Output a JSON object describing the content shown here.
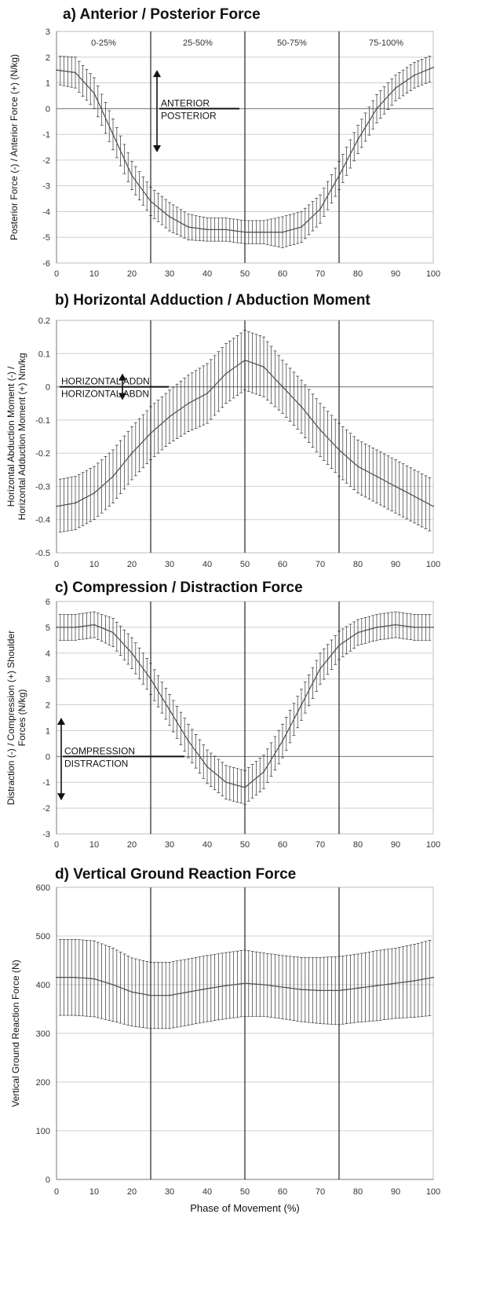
{
  "colors": {
    "mean_line": "#555555",
    "error_bar": "#333333",
    "grid": "#cfcfcf",
    "phase_divider": "#333333",
    "annotation": "#111111"
  },
  "chart_data": [
    {
      "type": "line",
      "title": "a) Anterior / Posterior Force",
      "ylabel": "Posterior Force (-) / Anterior Force (+) (N/kg)",
      "xlabel": "",
      "xlim": [
        0,
        100
      ],
      "ylim": [
        -6,
        3
      ],
      "xticks": [
        0,
        10,
        20,
        30,
        40,
        50,
        60,
        70,
        80,
        90,
        100
      ],
      "yticks": [
        3,
        2,
        1,
        0,
        -1,
        -2,
        -3,
        -4,
        -5,
        -6
      ],
      "grid": true,
      "phase_dividers": [
        25,
        50,
        75
      ],
      "phase_labels": [
        "0-25%",
        "25-50%",
        "50-75%",
        "75-100%"
      ],
      "annotation": {
        "x": 27,
        "y_top": 1.5,
        "y_bottom": -1.7,
        "labels": [
          "ANTERIOR",
          "POSTERIOR"
        ]
      },
      "series": [
        {
          "x": [
            0,
            5,
            10,
            15,
            20,
            25,
            30,
            35,
            40,
            45,
            50,
            55,
            60,
            65,
            70,
            75,
            80,
            85,
            90,
            95,
            100
          ],
          "mean": [
            1.5,
            1.4,
            0.6,
            -1.0,
            -2.6,
            -3.6,
            -4.2,
            -4.6,
            -4.7,
            -4.7,
            -4.8,
            -4.8,
            -4.8,
            -4.6,
            -3.9,
            -2.6,
            -1.2,
            0.0,
            0.8,
            1.3,
            1.6
          ],
          "error": [
            0.55,
            0.6,
            0.6,
            0.6,
            0.55,
            0.55,
            0.55,
            0.5,
            0.45,
            0.45,
            0.45,
            0.45,
            0.6,
            0.6,
            0.55,
            0.55,
            0.55,
            0.55,
            0.5,
            0.5,
            0.5
          ]
        }
      ]
    },
    {
      "type": "line",
      "title": "b) Horizontal Adduction / Abduction Moment",
      "ylabel": "Horizontal Abduction Moment (-) / Horizontal Adduction Moment (+) Nm/kg",
      "xlabel": "",
      "xlim": [
        0,
        100
      ],
      "ylim": [
        -0.5,
        0.2
      ],
      "xticks": [
        0,
        10,
        20,
        30,
        40,
        50,
        60,
        70,
        80,
        90,
        100
      ],
      "yticks": [
        0.2,
        0.1,
        0,
        -0.1,
        -0.2,
        -0.3,
        -0.4,
        -0.5
      ],
      "grid": true,
      "phase_dividers": [
        25,
        50,
        75
      ],
      "annotation": {
        "x": 16,
        "y_top": 0.04,
        "y_bottom": -0.04,
        "labels": [
          "HORIZONTAL  ADDN",
          "HORIZONTAL  ABDN"
        ]
      },
      "series": [
        {
          "x": [
            0,
            5,
            10,
            15,
            20,
            25,
            30,
            35,
            40,
            45,
            50,
            55,
            60,
            65,
            70,
            75,
            80,
            85,
            90,
            95,
            100
          ],
          "mean": [
            -0.36,
            -0.35,
            -0.32,
            -0.27,
            -0.2,
            -0.14,
            -0.09,
            -0.05,
            -0.02,
            0.04,
            0.08,
            0.06,
            0.0,
            -0.06,
            -0.13,
            -0.19,
            -0.24,
            -0.27,
            -0.3,
            -0.33,
            -0.36
          ],
          "error": [
            0.08,
            0.08,
            0.08,
            0.08,
            0.08,
            0.08,
            0.08,
            0.085,
            0.09,
            0.09,
            0.09,
            0.09,
            0.08,
            0.08,
            0.08,
            0.08,
            0.08,
            0.08,
            0.08,
            0.08,
            0.08
          ]
        }
      ]
    },
    {
      "type": "line",
      "title": "c) Compression / Distraction Force",
      "ylabel": "Distraction (-) / Compression (+) Shoulder Forces (N/kg)",
      "xlabel": "",
      "xlim": [
        0,
        100
      ],
      "ylim": [
        -3,
        6
      ],
      "xticks": [
        0,
        10,
        20,
        30,
        40,
        50,
        60,
        70,
        80,
        90,
        100
      ],
      "yticks": [
        6,
        5,
        4,
        3,
        2,
        1,
        0,
        -1,
        -2,
        -3
      ],
      "grid": true,
      "phase_dividers": [
        25,
        50,
        75
      ],
      "annotation": {
        "x": 1,
        "y_top": 1.5,
        "y_bottom": -1.7,
        "labels": [
          "COMPRESSION",
          "DISTRACTION"
        ]
      },
      "series": [
        {
          "x": [
            0,
            5,
            10,
            15,
            20,
            25,
            30,
            35,
            40,
            45,
            50,
            55,
            60,
            65,
            70,
            75,
            80,
            85,
            90,
            95,
            100
          ],
          "mean": [
            5.0,
            5.0,
            5.1,
            4.8,
            4.0,
            3.0,
            1.8,
            0.6,
            -0.4,
            -1.0,
            -1.2,
            -0.6,
            0.6,
            2.0,
            3.4,
            4.3,
            4.8,
            5.0,
            5.1,
            5.0,
            5.0
          ],
          "error": [
            0.5,
            0.5,
            0.5,
            0.55,
            0.6,
            0.6,
            0.6,
            0.65,
            0.65,
            0.65,
            0.65,
            0.65,
            0.65,
            0.6,
            0.6,
            0.55,
            0.5,
            0.5,
            0.5,
            0.5,
            0.5
          ]
        }
      ]
    },
    {
      "type": "line",
      "title": "d) Vertical Ground Reaction Force",
      "ylabel": "Vertical Ground Reaction Force (N)",
      "xlabel": "Phase of Movement (%)",
      "xlim": [
        0,
        100
      ],
      "ylim": [
        0,
        600
      ],
      "xticks": [
        0,
        10,
        20,
        30,
        40,
        50,
        60,
        70,
        80,
        90,
        100
      ],
      "yticks": [
        600,
        500,
        400,
        300,
        200,
        100,
        0
      ],
      "grid": true,
      "phase_dividers": [
        25,
        50,
        75
      ],
      "series": [
        {
          "x": [
            0,
            5,
            10,
            15,
            20,
            25,
            30,
            35,
            40,
            45,
            50,
            55,
            60,
            65,
            70,
            75,
            80,
            85,
            90,
            95,
            100
          ],
          "mean": [
            415,
            415,
            412,
            400,
            385,
            378,
            378,
            385,
            392,
            398,
            403,
            400,
            395,
            390,
            388,
            388,
            393,
            398,
            403,
            408,
            415
          ],
          "error": [
            78,
            78,
            78,
            75,
            70,
            68,
            68,
            68,
            68,
            68,
            68,
            65,
            65,
            66,
            68,
            70,
            70,
            72,
            72,
            75,
            78
          ]
        }
      ]
    }
  ]
}
